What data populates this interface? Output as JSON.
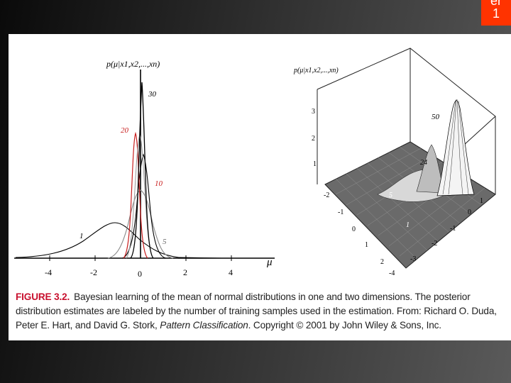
{
  "slide_badge": {
    "line1": "er",
    "line2": "1"
  },
  "left_plot": {
    "ylabel": "p(μ|x1,x2,...,xn)",
    "xlabel": "μ",
    "xticks": [
      "-4",
      "-2",
      "0",
      "2",
      "4"
    ],
    "curve_labels": [
      "30",
      "20",
      "10",
      "1",
      "5"
    ]
  },
  "right_plot": {
    "zlabel": "p(μ|x1,x2,...,xn)",
    "zticks": [
      "3",
      "2",
      "1"
    ],
    "axis1_ticks": [
      "-2",
      "-1",
      "0",
      "1",
      "2"
    ],
    "axis2_ticks": [
      "1",
      "0",
      "-1",
      "-2",
      "-3",
      "-4"
    ],
    "peak_labels": [
      "50",
      "24",
      "5",
      "1"
    ]
  },
  "caption": {
    "label": "FIGURE 3.2.",
    "text1": "Bayesian learning of the mean of normal distributions in one and two dimensions. The posterior distribution estimates are labeled by the number of training samples used in the estimation. From: Richard O. Duda, Peter E. Hart, and David G. Stork, ",
    "book": "Pattern Classification",
    "text2": ". Copyright © 2001 by John Wiley & Sons, Inc."
  }
}
